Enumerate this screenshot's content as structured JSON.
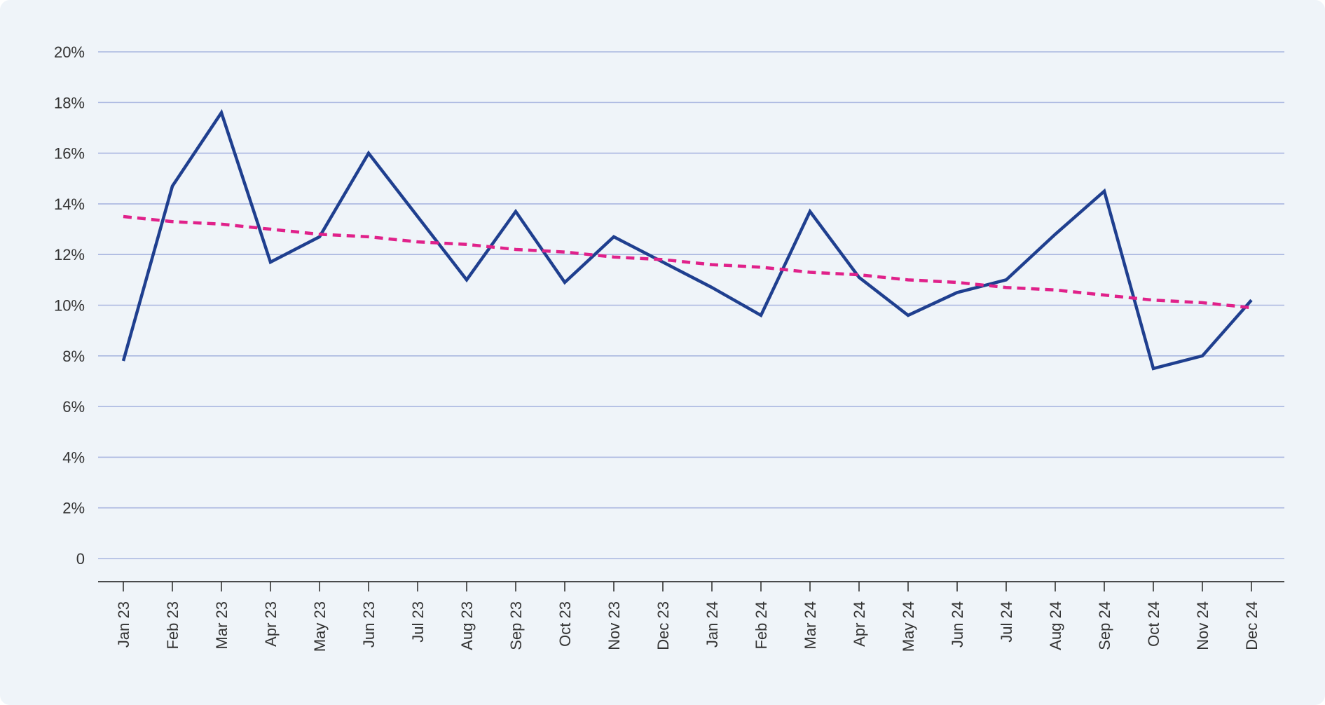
{
  "colors": {
    "background": "#eff4f9",
    "gridline": "#a9b6e0",
    "axis": "#333333",
    "series": "#1f3f8f",
    "trend": "#e0218a",
    "label": "#333333"
  },
  "chart_data": {
    "type": "line",
    "title": "",
    "xlabel": "",
    "ylabel": "",
    "ylim": [
      0,
      20
    ],
    "y_ticks": [
      0,
      2,
      4,
      6,
      8,
      10,
      12,
      14,
      16,
      18,
      20
    ],
    "y_tick_labels": [
      "0",
      "2%",
      "4%",
      "6%",
      "8%",
      "10%",
      "12%",
      "14%",
      "16%",
      "18%",
      "20%"
    ],
    "grid": true,
    "legend": "none",
    "categories": [
      "Jan 23",
      "Feb 23",
      "Mar 23",
      "Apr 23",
      "May 23",
      "Jun 23",
      "Jul 23",
      "Aug 23",
      "Sep 23",
      "Oct 23",
      "Nov 23",
      "Dec 23",
      "Jan 24",
      "Feb 24",
      "Mar 24",
      "Apr 24",
      "May 24",
      "Jun 24",
      "Jul 24",
      "Aug 24",
      "Sep 24",
      "Oct 24",
      "Nov 24",
      "Dec 24"
    ],
    "series": [
      {
        "style": "solid",
        "color": "#1f3f8f",
        "values": [
          7.8,
          14.7,
          17.6,
          11.7,
          12.7,
          16.0,
          13.5,
          11.0,
          13.7,
          10.9,
          12.7,
          11.7,
          10.7,
          9.6,
          13.7,
          11.1,
          9.6,
          10.5,
          11.0,
          12.8,
          14.5,
          7.5,
          8.0,
          10.2
        ]
      },
      {
        "style": "dashed",
        "color": "#e0218a",
        "values": [
          13.5,
          13.3,
          13.2,
          13.0,
          12.8,
          12.7,
          12.5,
          12.4,
          12.2,
          12.1,
          11.9,
          11.8,
          11.6,
          11.5,
          11.3,
          11.2,
          11.0,
          10.9,
          10.7,
          10.6,
          10.4,
          10.2,
          10.1,
          9.9
        ]
      }
    ]
  }
}
